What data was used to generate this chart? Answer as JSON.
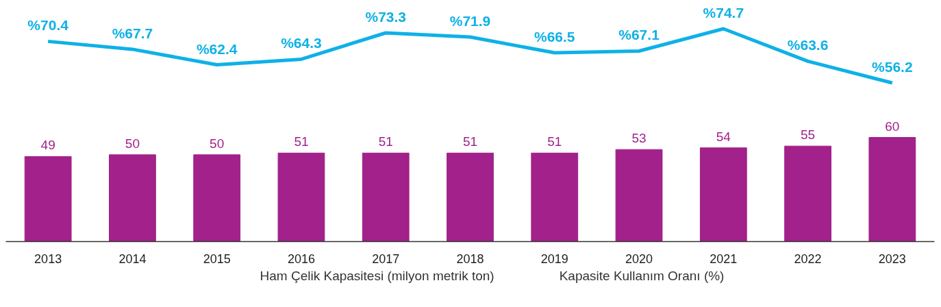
{
  "chart_data": [
    {
      "type": "line",
      "categories": [
        "2013",
        "2014",
        "2015",
        "2016",
        "2017",
        "2018",
        "2019",
        "2020",
        "2021",
        "2022",
        "2023"
      ],
      "series": [
        {
          "name": "Kapasite Kullanım Oranı (%)",
          "color": "#0eb1e6",
          "values": [
            70.4,
            67.7,
            62.4,
            64.3,
            73.3,
            71.9,
            66.5,
            67.1,
            74.7,
            63.6,
            56.2
          ],
          "value_labels": [
            "%70.4",
            "%67.7",
            "%62.4",
            "%64.3",
            "%73.3",
            "%71.9",
            "%66.5",
            "%67.1",
            "%74.7",
            "%63.6",
            "%56.2"
          ]
        }
      ],
      "tick_labels": false,
      "legend": "bottom",
      "line_style": "solid"
    },
    {
      "type": "bar",
      "categories": [
        "2013",
        "2014",
        "2015",
        "2016",
        "2017",
        "2018",
        "2019",
        "2020",
        "2021",
        "2022",
        "2023"
      ],
      "series": [
        {
          "name": "Ham Çelik Kapasitesi (milyon metrik ton)",
          "color": "#a2218a",
          "values": [
            49,
            50,
            50,
            51,
            51,
            51,
            51,
            53,
            54,
            55,
            60
          ],
          "value_labels": [
            "49",
            "50",
            "50",
            "51",
            "51",
            "51",
            "51",
            "53",
            "54",
            "55",
            "60"
          ]
        }
      ],
      "tick_labels": "x",
      "legend": "bottom"
    }
  ]
}
